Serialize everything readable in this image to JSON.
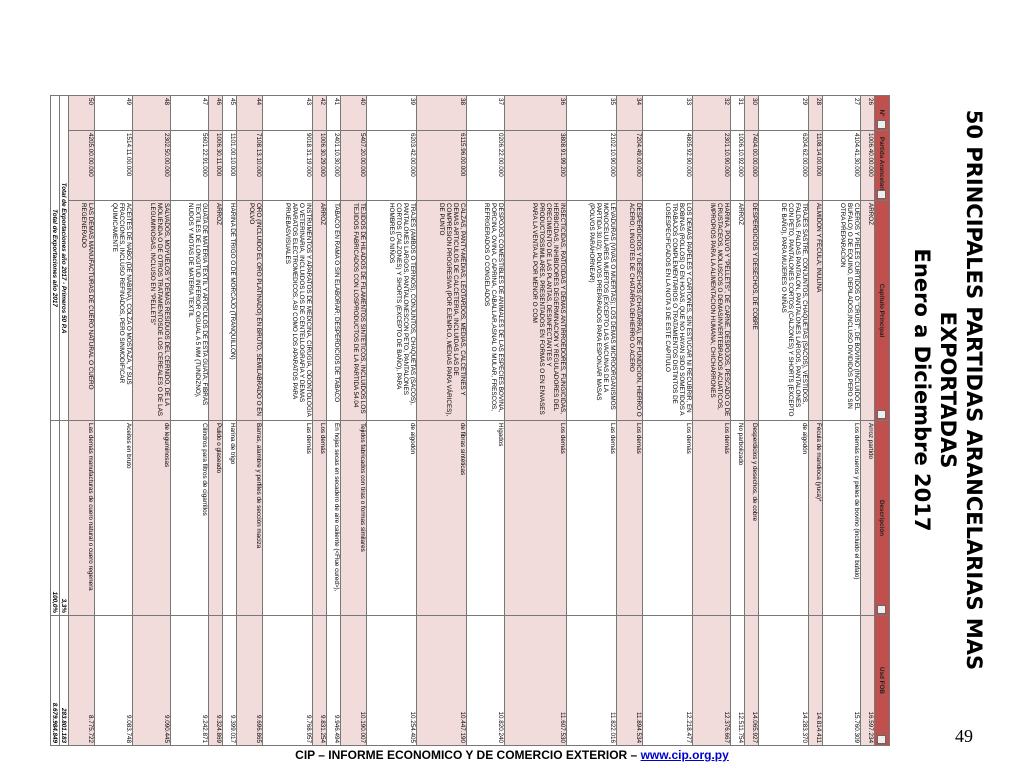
{
  "header": {
    "title": "50 PRINCIPALES PARTIDAS ARANCELARIAS MAS EXPORTADAS",
    "subtitle": "Enero a Diciembre 2017"
  },
  "table": {
    "columns": [
      "Nº",
      "Partida Arancelaria",
      "Capitulo Principal",
      "Descripción",
      "Usd FOB"
    ],
    "rows": [
      [
        "26",
        "1006.40.00.000",
        "ARROZ",
        "Arroz partido",
        "16.597.234"
      ],
      [
        "27",
        "4104.41.30.000",
        "CUEROS Y PIELES CURTIDOS O \"CRUST\", DE BOVINO (INCLUIDO EL BUFALO) O DE EQUINO, DEPILADOS,INCLUSO DIVIDIDOS PERO SIN OTRA PREPARACION",
        "Los demás cueros y pieles de bovino (incluido el búfalo)",
        "15.760.309"
      ],
      [
        "28",
        "1108.14.00.000",
        "ALMIDON Y FECULA; INULINA",
        "Fécula de mandioca (yuca)*",
        "14.814.411"
      ],
      [
        "29",
        "6204.62.00.000",
        "TRAJES SASTRE, CONJUNTOS, CHAQUETAS (SACOS), VESTIDOS, FALDAS, FALDAS PANTALON, PANTALONES LARGOS, PANTALONES CON PETO, PANTALONES CORTOS (CALZONES) Y SHORTS (EXCEPTO DE BAÑO), PARA MUJERES O NIÑAS",
        "de algodón",
        "14.283.370"
      ],
      [
        "30",
        "7404.00.00.000",
        "DESPERDICIOS Y DESECHOS, DE COBRE",
        "Desperdicios y desechos, de cobre",
        "14.065.927"
      ],
      [
        "31",
        "1006.10.92.000",
        "ARROZ",
        "No parbolizado",
        "12.511.754"
      ],
      [
        "32",
        "2301.10.90.000",
        "HARINA, POLVO Y \"PELLETS\", DE CARNE, DESPOJOS, PESCADO O DE CRUSTACEOS, MOLUSCOS O DEMASINVERTEBRADOS ACUATICOS, IMPROPIOS PARA LA ALIMENTACION HUMANA; CHICHARRONES",
        "Los demás",
        "12.376.667"
      ],
      [
        "33",
        "4805.92.90.000",
        "LOS DEMAS PAPELES Y CARTONES, SIN ESTUCAR NI RECUBRIR, EN BOBINAS (ROLLOS) O EN HOJAS, QUE NO HAYAN SIDO SOMETIDOS A TRABAJOS COMPLEMENTARIOS O TRATAMIENTOS DISTINTOS DE LOSESPECIFICADOS EN LA NOTA 3 DE ESTE CAPITULO",
        "Los demás",
        "12.218.477"
      ],
      [
        "34",
        "7204.49.00.000",
        "DESPERDICIOS Y DESECHOS (CHATARRA), DE FUNDICION, HIERRO O ACERO; LINGOTES DE CHATARRA DEHIERRO O ACERO",
        "Los demás",
        "11.894.534"
      ],
      [
        "35",
        "2102.10.90.000",
        "LEVADURAS (VIVAS O MUERTAS); LOS DEMAS MICROORGANISMOS MONOCELULARES MUERTOS (EXCEPTO LAS VACUNAS DE LA PARTIDA 30.02); POLVOS PREPARADOS PARA ESPONJAR MASAS (POLVOS PARAHORNEAR)",
        "Las demás",
        "11.822.016"
      ],
      [
        "36",
        "3808.91.99.200",
        "INSECTICIDAS, RATICIDAS Y DEMAS ANTIRROEDORES, FUNGICIDAS, HERBICIDAS, INHIBIDORES DEGERMINACION Y REGULADORES DEL CRECIMIENTO DE LAS PLANTAS, DESINFECTANTES Y PRODUCTOSSIMILARES, PRESENTADOS EN FORMAS O EN ENVASES PARA LA VENTA AL POR MENOR O COM",
        "Los demás",
        "11.607.530"
      ],
      [
        "37",
        "0206.22.00.000",
        "DESPOJOS COMESTIBLES DE ANIMALES DE LAS ESPECIES BOVINA, PORCINA, OVINA, CAPRINA, CABALLAR,ASNAL O MULAR, FRESCOS, REFRIGERADOS O CONGELADOS",
        "Hígados",
        "10.820.240"
      ],
      [
        "38",
        "6115.96.00.000",
        "CALZAS, PANTY-MEDIAS, LEOTARDOS, MEDIAS, CALCETINES Y DEMAS ARTICULOS DE CALCETERIA, INCLUIDAS LAS DE COMPRESION PROGRESIVA (POR EJEMPLO, MEDIAS PARA VÁRICES), DE PUNTO",
        "de fibras sintéticas",
        "10.447.190"
      ],
      [
        "39",
        "6203.42.00.000",
        "TRAJES (AMBOS O TERNOS), CONJUNTOS, CHAQUETAS (SACOS), PANTALONES LARGOS, PANTALONESCON PETO, PANTALONES CORTOS (CALZONES) Y SHORTS (EXCEPTO DE BAÑO), PARA HOMBRES O NIÑOS",
        "de algodón",
        "10.254.405"
      ],
      [
        "40",
        "5407.20.00.000",
        "TEJIDOS DE HILADOS DE FILAMENTOS SINTÉTICOS, INCLUIDOS LOS TEJIDOS FABRICADOS CON LOSPRODUCTOS DE LA PARTIDA 54.04",
        "Tejidos fabricados con tiras o formas similares",
        "10.190.007"
      ],
      [
        "41",
        "2401.10.30.000",
        "TABACO EN RAMA O SIN ELABORAR; DESPERDICIOS DE TABACO",
        "En hojas secas en secadero de aire caliente (<Flue cured>),",
        "9.946.494"
      ],
      [
        "42",
        "1006.30.29.000",
        "ARROZ",
        "Los demás",
        "9.831.254"
      ],
      [
        "43",
        "9018.31.19.000",
        "INSTRUMENTOS Y APARATOS DE MEDICINA, CIRUGÍA, ODONTOLOGÍA O VETERINARIA, INCLUIDOS LOS DE CENTELLOGRAFIA Y DEMAS APARATOS ELECTROMEDICOS, ASI COMO LOS APARATOS PARA PRUEBASVISUALES",
        "Las demás",
        "9.768.957"
      ],
      [
        "44",
        "7108.13.10.000",
        "ORO (INCLUIDO EL ORO PLATINADO) EN BRUTO, SEMILABRADO O EN POLVO",
        "Barras, alambre y perfiles de sección maciza",
        "9.696.865"
      ],
      [
        "45",
        "1101.00.10.000",
        "HARINA DE TRIGO O DE MORCAJO (TRANQUILLON)",
        "Harina de trigo",
        "9.399.017"
      ],
      [
        "46",
        "1006.30.11.000",
        "ARROZ",
        "Pulido o glaseado",
        "9.324.869"
      ],
      [
        "47",
        "5601.22.91.000",
        "GUATA DE MATERIA TEXTIL Y ARTICULOS DE ESTA GUATA; FIBRAS TEXTILES DE LONGITUD INFERIOR OIGUAL A 5 MM (TUNDIZNO), NUDOS Y MOTAS DE MATERIA TEXTIL",
        "Cilindros para filtros de cigarrillos",
        "9.242.871"
      ],
      [
        "48",
        "2302.50.00.000",
        "SALVADOS, MOYUELOS Y DEMAS RESIDUOS DEL CERNIDO, DE LA MOLIENDA O DE OTROS TRATAMIENTOSDE LOS CEREALES O DE LAS LEGUMINOSAS, INCLUSO EN \"PELLETS\"",
        "de leguminosas",
        "9.090.445"
      ],
      [
        "49",
        "1514.11.00.000",
        "ACEITES DE NABO (DE NABINA), COLZA O MOSTAZA, Y SUS FRACCIONES, INCLUSO REFINADOS, PERO SINMODIFICAR QUIMICAMENTE",
        "Aceites en bruto",
        "9.083.748"
      ],
      [
        "50",
        "4205.00.00.000",
        "LAS DEMAS MANUFACTURAS DE CUERO NATURAL O CUERO REGENERADO",
        "Las demás manufacturas de cuero natural o cuero regenera",
        "8.775.722"
      ]
    ],
    "totals": [
      [
        "Total de Exportaciones año 2017 - Primeros 50 P.A",
        "3,3%",
        "283.801.183"
      ],
      [
        "Total de Exportaciones año 2017",
        "100,0%",
        "8.679.984.849"
      ]
    ]
  },
  "footer": {
    "text": "CIP – INFORME ECONOMICO Y DE COMERCIO EXTERIOR –",
    "link": "www.cip.org.py",
    "page": "49"
  }
}
